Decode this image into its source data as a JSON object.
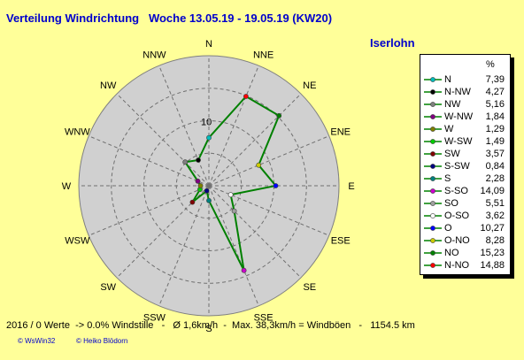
{
  "header": {
    "title": "Verteilung Windrichtung   Woche 13.05.19 - 19.05.19 (KW20)",
    "station": "Iserlohn"
  },
  "footer": {
    "summary": "2016 / 0 Werte  -> 0.0% Windstille   -   Ø 1,6km/h  -  Max. 38,3km/h = Windböen   -   1154.5 km",
    "credit_left": "© WsWin32",
    "credit_right": "© Heiko Blödorn"
  },
  "chart_data": {
    "type": "radar",
    "directions": [
      "N",
      "NNE",
      "NE",
      "ENE",
      "E",
      "ESE",
      "SE",
      "SSE",
      "S",
      "SSW",
      "SW",
      "WSW",
      "W",
      "WNW",
      "NW",
      "NNW"
    ],
    "values": [
      7.39,
      14.88,
      15.23,
      8.28,
      10.27,
      3.62,
      5.51,
      14.09,
      2.28,
      0.84,
      3.57,
      1.49,
      1.29,
      1.84,
      5.16,
      4.27
    ],
    "rlim": [
      0,
      20
    ],
    "ring_labels": [
      "10"
    ],
    "line_color": "#008000",
    "grid": true,
    "legend": {
      "unit": "%",
      "position": "right",
      "entries": [
        {
          "label": "N",
          "value": "7,39",
          "color": "#00bcbc"
        },
        {
          "label": "N-NW",
          "value": "4,27",
          "color": "#000000"
        },
        {
          "label": "NW",
          "value": "5,16",
          "color": "#808080"
        },
        {
          "label": "W-NW",
          "value": "1,84",
          "color": "#800080"
        },
        {
          "label": "W",
          "value": "1,29",
          "color": "#808000"
        },
        {
          "label": "W-SW",
          "value": "1,49",
          "color": "#00cc00"
        },
        {
          "label": "SW",
          "value": "3,57",
          "color": "#800000"
        },
        {
          "label": "S-SW",
          "value": "0,84",
          "color": "#000080"
        },
        {
          "label": "S",
          "value": "2,28",
          "color": "#008080"
        },
        {
          "label": "S-SO",
          "value": "14,09",
          "color": "#cc00cc"
        },
        {
          "label": "SO",
          "value": "5,51",
          "color": "#a0a0a0"
        },
        {
          "label": "O-SO",
          "value": "3,62",
          "color": "#ffffff"
        },
        {
          "label": "O",
          "value": "10,27",
          "color": "#0000ff"
        },
        {
          "label": "O-NO",
          "value": "8,28",
          "color": "#cccc00"
        },
        {
          "label": "NO",
          "value": "15,23",
          "color": "#008000"
        },
        {
          "label": "N-NO",
          "value": "14,88",
          "color": "#ff0000"
        }
      ]
    }
  }
}
